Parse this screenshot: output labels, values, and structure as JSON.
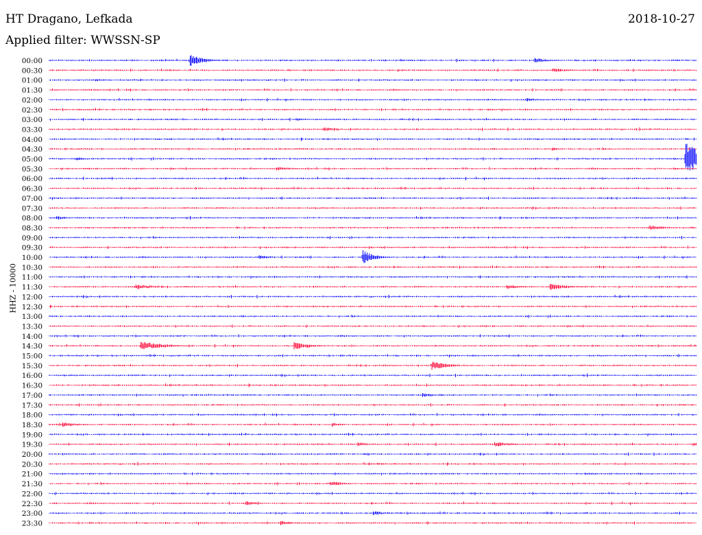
{
  "header": {
    "station": "HT Dragano, Lefkada",
    "filter": "Applied filter: WWSSN-SP",
    "date": "2018-10-27"
  },
  "chart_data": {
    "type": "line",
    "title": "HT Dragano, Lefkada",
    "subtitle": "Applied filter: WWSSN-SP",
    "date": "2018-10-27",
    "ylabel": "HHZ - 10000",
    "colors": {
      "even": "#0000ff",
      "odd": "#ff0033"
    },
    "rows": [
      "00:00",
      "00:30",
      "01:00",
      "01:30",
      "02:00",
      "02:30",
      "03:00",
      "03:30",
      "04:00",
      "04:30",
      "05:00",
      "05:30",
      "06:00",
      "06:30",
      "07:00",
      "07:30",
      "08:00",
      "08:30",
      "09:00",
      "09:30",
      "10:00",
      "10:30",
      "11:00",
      "11:30",
      "12:00",
      "12:30",
      "13:00",
      "13:30",
      "14:00",
      "14:30",
      "15:00",
      "15:30",
      "16:00",
      "16:30",
      "17:00",
      "17:30",
      "18:00",
      "18:30",
      "19:00",
      "19:30",
      "20:00",
      "20:30",
      "21:00",
      "21:30",
      "22:00",
      "22:30",
      "23:00",
      "23:30"
    ],
    "x_range_minutes": [
      0,
      30
    ],
    "events": [
      {
        "row": 0,
        "minute": 6.5,
        "amplitude": 9,
        "width": 0.6
      },
      {
        "row": 0,
        "minute": 22.5,
        "amplitude": 4,
        "width": 0.6
      },
      {
        "row": 1,
        "minute": 23.3,
        "amplitude": 3,
        "width": 0.8
      },
      {
        "row": 2,
        "minute": 2.1,
        "amplitude": 2,
        "width": 0.5
      },
      {
        "row": 4,
        "minute": 22.1,
        "amplitude": 3,
        "width": 0.5
      },
      {
        "row": 5,
        "minute": 20.3,
        "amplitude": 2,
        "width": 0.5
      },
      {
        "row": 6,
        "minute": 11.4,
        "amplitude": 2,
        "width": 0.7
      },
      {
        "row": 7,
        "minute": 12.7,
        "amplitude": 3,
        "width": 0.6
      },
      {
        "row": 9,
        "minute": 23.3,
        "amplitude": 3,
        "width": 0.4
      },
      {
        "row": 10,
        "minute": 29.5,
        "amplitude": 26,
        "width": 0.8
      },
      {
        "row": 10,
        "minute": 1.2,
        "amplitude": 3,
        "width": 0.5
      },
      {
        "row": 11,
        "minute": 10.5,
        "amplitude": 3,
        "width": 0.7
      },
      {
        "row": 11,
        "minute": 28.9,
        "amplitude": 2,
        "width": 0.5
      },
      {
        "row": 16,
        "minute": 0.3,
        "amplitude": 3,
        "width": 0.5
      },
      {
        "row": 17,
        "minute": 27.8,
        "amplitude": 4,
        "width": 0.7
      },
      {
        "row": 20,
        "minute": 14.5,
        "amplitude": 11,
        "width": 0.5
      },
      {
        "row": 20,
        "minute": 9.7,
        "amplitude": 3,
        "width": 0.6
      },
      {
        "row": 23,
        "minute": 4.0,
        "amplitude": 4,
        "width": 0.8
      },
      {
        "row": 23,
        "minute": 23.2,
        "amplitude": 5,
        "width": 0.8
      },
      {
        "row": 23,
        "minute": 21.2,
        "amplitude": 3,
        "width": 0.7
      },
      {
        "row": 29,
        "minute": 4.2,
        "amplitude": 7,
        "width": 1.0
      },
      {
        "row": 29,
        "minute": 11.3,
        "amplitude": 6,
        "width": 0.8
      },
      {
        "row": 31,
        "minute": 17.7,
        "amplitude": 7,
        "width": 0.7
      },
      {
        "row": 34,
        "minute": 17.3,
        "amplitude": 3,
        "width": 0.6
      },
      {
        "row": 37,
        "minute": 0.6,
        "amplitude": 4,
        "width": 0.7
      },
      {
        "row": 37,
        "minute": 13.1,
        "amplitude": 3,
        "width": 0.5
      },
      {
        "row": 39,
        "minute": 20.6,
        "amplitude": 4,
        "width": 0.8
      },
      {
        "row": 39,
        "minute": 14.3,
        "amplitude": 3,
        "width": 0.5
      },
      {
        "row": 39,
        "minute": 29.8,
        "amplitude": 3,
        "width": 0.5
      },
      {
        "row": 40,
        "minute": 14.5,
        "amplitude": 2,
        "width": 0.7
      },
      {
        "row": 41,
        "minute": 15.2,
        "amplitude": 2,
        "width": 0.5
      },
      {
        "row": 42,
        "minute": 24.8,
        "amplitude": 2,
        "width": 0.7
      },
      {
        "row": 43,
        "minute": 13.0,
        "amplitude": 4,
        "width": 0.7
      },
      {
        "row": 45,
        "minute": 9.1,
        "amplitude": 3,
        "width": 0.6
      },
      {
        "row": 46,
        "minute": 15.0,
        "amplitude": 3,
        "width": 0.6
      },
      {
        "row": 47,
        "minute": 10.7,
        "amplitude": 4,
        "width": 0.5
      }
    ]
  }
}
